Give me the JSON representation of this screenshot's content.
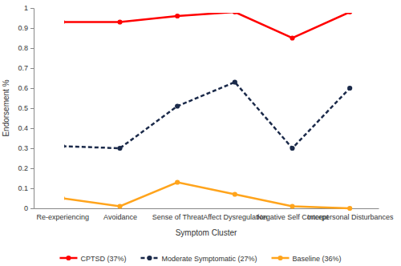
{
  "chart_data": {
    "type": "line",
    "x_label": "Symptom Cluster",
    "y_label": "Endorsement %",
    "categories": [
      "Re-experiencing",
      "Avoidance",
      "Sense of Threat",
      "Affect Dysregulation",
      "Negative Self Concept",
      "Interpersonal Disturbances"
    ],
    "series": [
      {
        "name": "CPTSD (37%)",
        "color": "#ff0000",
        "marker": "circle",
        "line_style": "solid",
        "values": [
          0.93,
          0.93,
          0.96,
          0.98,
          0.85,
          0.98
        ]
      },
      {
        "name": "Moderate Symptomatic (27%)",
        "color": "#1b2a4a",
        "marker": "circle",
        "line_style": "dashed",
        "values": [
          0.31,
          0.3,
          0.51,
          0.63,
          0.3,
          0.6
        ]
      },
      {
        "name": "Baseline (36%)",
        "color": "#ffa41c",
        "marker": "circle",
        "line_style": "solid",
        "values": [
          0.05,
          0.01,
          0.13,
          0.07,
          0.01,
          0.0
        ]
      }
    ],
    "ylim": [
      0,
      1
    ],
    "yticks": [
      0,
      0.1,
      0.2,
      0.3,
      0.4,
      0.5,
      0.6,
      0.7,
      0.8,
      0.9,
      1
    ],
    "grid": false,
    "legend": "bottom"
  }
}
